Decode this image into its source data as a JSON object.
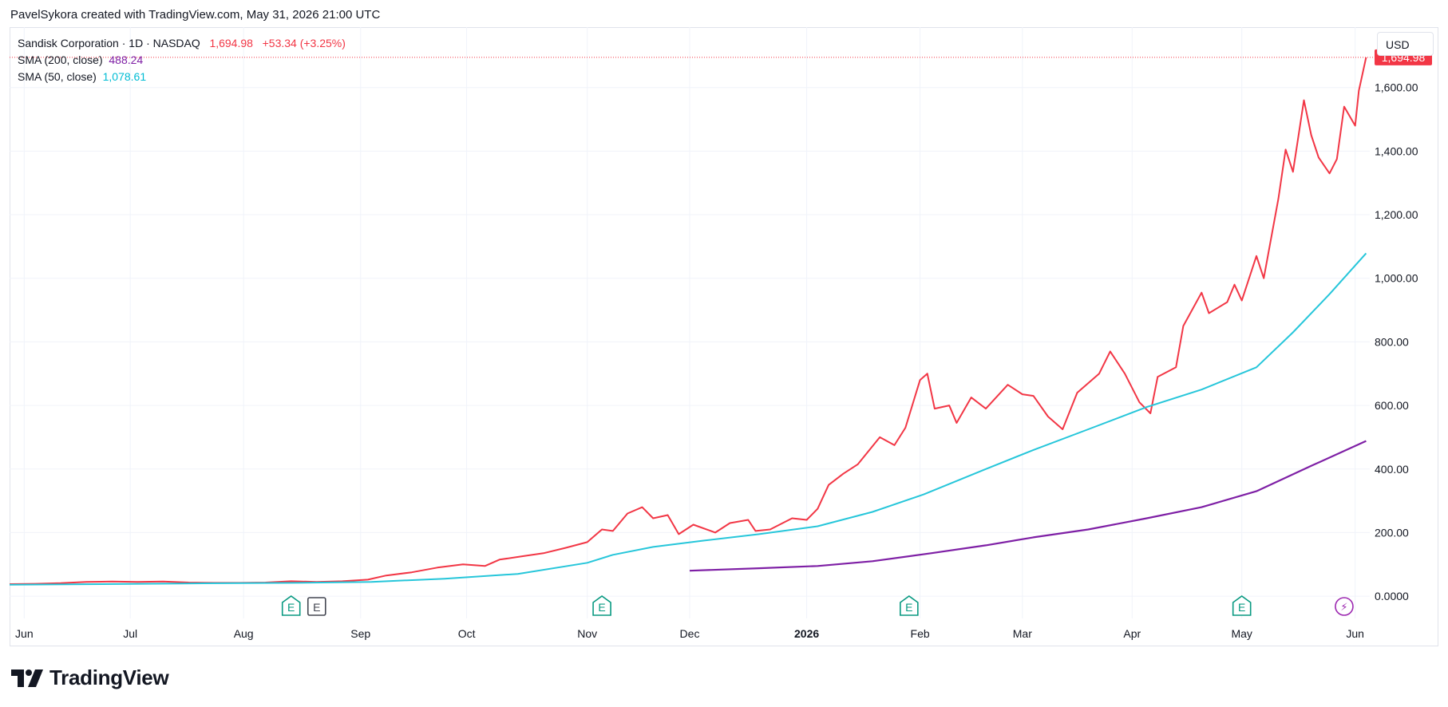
{
  "caption": "PavelSykora created with TradingView.com, May 31, 2026 21:00 UTC",
  "legend": {
    "symbol": "Sandisk Corporation · 1D · NASDAQ",
    "price": "1,694.98",
    "change": "+53.34 (+3.25%)",
    "sma200_label": "SMA (200, close)",
    "sma200_value": "488.24",
    "sma50_label": "SMA (50, close)",
    "sma50_value": "1,078.61"
  },
  "currency_button": "USD",
  "brand": {
    "name": "TradingView",
    "icon": "tradingview-logo-icon"
  },
  "colors": {
    "price": "#f23645",
    "sma200": "#7e1fa5",
    "sma50": "#26c6da",
    "earnings": "#089981",
    "grid": "#f0f3fa"
  },
  "chart_data": {
    "type": "line",
    "title": "Sandisk Corporation · 1D · NASDAQ",
    "y_axis_position": "right",
    "ylim": [
      -70,
      1790
    ],
    "y_ticks": [
      0,
      200,
      400,
      600,
      800,
      1000,
      1200,
      1400,
      1600
    ],
    "y_tick_labels": [
      "0.0000",
      "200.00",
      "400.00",
      "600.00",
      "800.00",
      "1,000.00",
      "1,200.00",
      "1,400.00",
      "1,600.00"
    ],
    "last_price_label": "1,694.98",
    "xlim": [
      "2025-05-29",
      "2026-06-05"
    ],
    "x_tick_labels": [
      {
        "date": "2025-06-02",
        "label": "Jun",
        "bold": false
      },
      {
        "date": "2025-07-01",
        "label": "Jul",
        "bold": false
      },
      {
        "date": "2025-08-01",
        "label": "Aug",
        "bold": false
      },
      {
        "date": "2025-09-02",
        "label": "Sep",
        "bold": false
      },
      {
        "date": "2025-10-01",
        "label": "Oct",
        "bold": false
      },
      {
        "date": "2025-11-03",
        "label": "Nov",
        "bold": false
      },
      {
        "date": "2025-12-01",
        "label": "Dec",
        "bold": false
      },
      {
        "date": "2026-01-02",
        "label": "2026",
        "bold": true
      },
      {
        "date": "2026-02-02",
        "label": "Feb",
        "bold": false
      },
      {
        "date": "2026-03-02",
        "label": "Mar",
        "bold": false
      },
      {
        "date": "2026-04-01",
        "label": "Apr",
        "bold": false
      },
      {
        "date": "2026-05-01",
        "label": "May",
        "bold": false
      },
      {
        "date": "2026-06-01",
        "label": "Jun",
        "bold": false
      }
    ],
    "event_markers": [
      {
        "date": "2025-08-14",
        "label": "E",
        "kind": "earnings"
      },
      {
        "date": "2025-08-21",
        "label": "E",
        "kind": "earnings-upcoming"
      },
      {
        "date": "2025-11-07",
        "label": "E",
        "kind": "earnings"
      },
      {
        "date": "2026-01-30",
        "label": "E",
        "kind": "earnings"
      },
      {
        "date": "2026-05-01",
        "label": "E",
        "kind": "earnings"
      },
      {
        "date": "2026-05-29",
        "label": "⚡",
        "kind": "dividend-split"
      }
    ],
    "series": [
      {
        "name": "Sandisk Corporation",
        "points": [
          [
            "2025-05-29",
            38
          ],
          [
            "2025-06-05",
            39
          ],
          [
            "2025-06-12",
            41
          ],
          [
            "2025-06-19",
            45
          ],
          [
            "2025-06-26",
            46
          ],
          [
            "2025-07-03",
            45
          ],
          [
            "2025-07-10",
            46
          ],
          [
            "2025-07-17",
            43
          ],
          [
            "2025-07-24",
            42
          ],
          [
            "2025-07-31",
            42
          ],
          [
            "2025-08-07",
            43
          ],
          [
            "2025-08-14",
            47
          ],
          [
            "2025-08-21",
            45
          ],
          [
            "2025-08-28",
            47
          ],
          [
            "2025-09-04",
            52
          ],
          [
            "2025-09-09",
            65
          ],
          [
            "2025-09-16",
            75
          ],
          [
            "2025-09-23",
            90
          ],
          [
            "2025-09-30",
            100
          ],
          [
            "2025-10-06",
            95
          ],
          [
            "2025-10-10",
            115
          ],
          [
            "2025-10-16",
            125
          ],
          [
            "2025-10-22",
            135
          ],
          [
            "2025-10-28",
            152
          ],
          [
            "2025-11-03",
            170
          ],
          [
            "2025-11-07",
            210
          ],
          [
            "2025-11-10",
            205
          ],
          [
            "2025-11-14",
            260
          ],
          [
            "2025-11-18",
            280
          ],
          [
            "2025-11-21",
            245
          ],
          [
            "2025-11-25",
            255
          ],
          [
            "2025-11-28",
            195
          ],
          [
            "2025-12-02",
            225
          ],
          [
            "2025-12-08",
            200
          ],
          [
            "2025-12-12",
            230
          ],
          [
            "2025-12-17",
            240
          ],
          [
            "2025-12-19",
            205
          ],
          [
            "2025-12-23",
            210
          ],
          [
            "2025-12-29",
            245
          ],
          [
            "2026-01-02",
            240
          ],
          [
            "2026-01-05",
            275
          ],
          [
            "2026-01-08",
            350
          ],
          [
            "2026-01-12",
            385
          ],
          [
            "2026-01-16",
            415
          ],
          [
            "2026-01-22",
            500
          ],
          [
            "2026-01-26",
            475
          ],
          [
            "2026-01-29",
            530
          ],
          [
            "2026-02-02",
            680
          ],
          [
            "2026-02-04",
            700
          ],
          [
            "2026-02-06",
            590
          ],
          [
            "2026-02-10",
            600
          ],
          [
            "2026-02-12",
            545
          ],
          [
            "2026-02-16",
            625
          ],
          [
            "2026-02-20",
            590
          ],
          [
            "2026-02-26",
            665
          ],
          [
            "2026-03-02",
            635
          ],
          [
            "2026-03-05",
            630
          ],
          [
            "2026-03-09",
            565
          ],
          [
            "2026-03-13",
            525
          ],
          [
            "2026-03-17",
            640
          ],
          [
            "2026-03-23",
            700
          ],
          [
            "2026-03-26",
            770
          ],
          [
            "2026-03-30",
            700
          ],
          [
            "2026-04-03",
            610
          ],
          [
            "2026-04-06",
            575
          ],
          [
            "2026-04-08",
            690
          ],
          [
            "2026-04-13",
            720
          ],
          [
            "2026-04-15",
            850
          ],
          [
            "2026-04-20",
            955
          ],
          [
            "2026-04-22",
            890
          ],
          [
            "2026-04-27",
            925
          ],
          [
            "2026-04-29",
            980
          ],
          [
            "2026-05-01",
            930
          ],
          [
            "2026-05-05",
            1070
          ],
          [
            "2026-05-07",
            1000
          ],
          [
            "2026-05-11",
            1250
          ],
          [
            "2026-05-13",
            1405
          ],
          [
            "2026-05-15",
            1335
          ],
          [
            "2026-05-18",
            1560
          ],
          [
            "2026-05-20",
            1450
          ],
          [
            "2026-05-22",
            1380
          ],
          [
            "2026-05-25",
            1330
          ],
          [
            "2026-05-27",
            1375
          ],
          [
            "2026-05-29",
            1540
          ],
          [
            "2026-06-01",
            1480
          ],
          [
            "2026-06-02",
            1590
          ],
          [
            "2026-06-04",
            1694.98
          ]
        ]
      },
      {
        "name": "SMA (50, close)",
        "points": [
          [
            "2025-05-29",
            36
          ],
          [
            "2025-07-15",
            40
          ],
          [
            "2025-08-15",
            42
          ],
          [
            "2025-09-05",
            45
          ],
          [
            "2025-09-25",
            55
          ],
          [
            "2025-10-15",
            70
          ],
          [
            "2025-11-03",
            105
          ],
          [
            "2025-11-10",
            130
          ],
          [
            "2025-11-21",
            155
          ],
          [
            "2025-12-05",
            175
          ],
          [
            "2025-12-20",
            195
          ],
          [
            "2026-01-05",
            220
          ],
          [
            "2026-01-20",
            265
          ],
          [
            "2026-02-03",
            320
          ],
          [
            "2026-02-20",
            400
          ],
          [
            "2026-03-05",
            460
          ],
          [
            "2026-03-20",
            525
          ],
          [
            "2026-04-05",
            595
          ],
          [
            "2026-04-20",
            650
          ],
          [
            "2026-05-05",
            720
          ],
          [
            "2026-05-15",
            830
          ],
          [
            "2026-05-25",
            950
          ],
          [
            "2026-06-04",
            1078.61
          ]
        ]
      },
      {
        "name": "SMA (200, close)",
        "points": [
          [
            "2025-12-01",
            80
          ],
          [
            "2025-12-20",
            88
          ],
          [
            "2026-01-05",
            95
          ],
          [
            "2026-01-20",
            110
          ],
          [
            "2026-02-05",
            135
          ],
          [
            "2026-02-20",
            160
          ],
          [
            "2026-03-05",
            185
          ],
          [
            "2026-03-20",
            210
          ],
          [
            "2026-04-05",
            245
          ],
          [
            "2026-04-20",
            280
          ],
          [
            "2026-05-05",
            330
          ],
          [
            "2026-05-20",
            410
          ],
          [
            "2026-06-04",
            488.24
          ]
        ]
      }
    ]
  }
}
